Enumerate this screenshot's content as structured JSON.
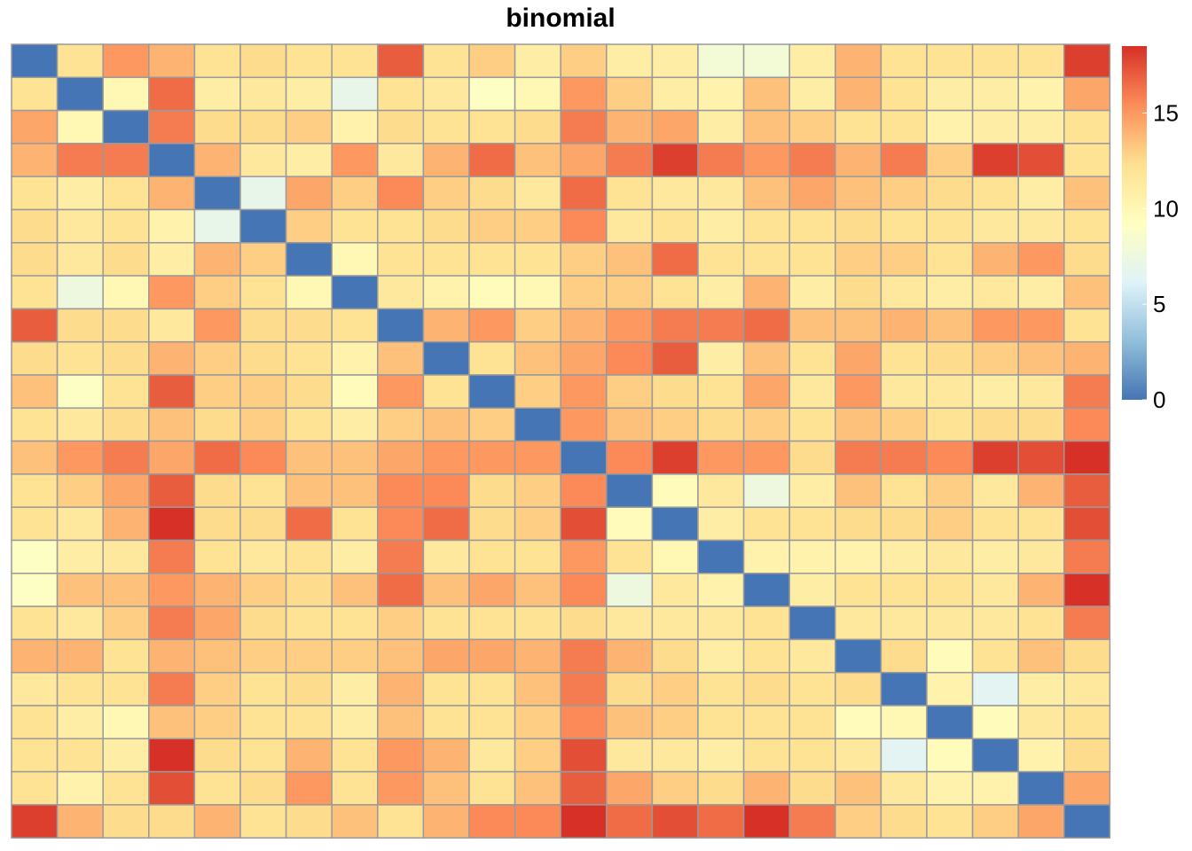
{
  "chart_data": {
    "type": "heatmap",
    "title": "binomial",
    "xlabel": "",
    "ylabel": "",
    "n": 24,
    "grid": true,
    "legend": "right",
    "colorbar": {
      "range": [
        0,
        18.5
      ],
      "ticks": [
        0,
        5,
        10,
        15
      ],
      "tick_labels": [
        "0",
        "5",
        "10",
        "15"
      ],
      "palette": [
        "#4575B4",
        "#91BFDB",
        "#E0F3F8",
        "#FFFFBF",
        "#FEE090",
        "#FC8D59",
        "#D73027"
      ]
    },
    "values": [
      [
        0,
        12,
        15,
        14,
        12,
        12.5,
        12,
        12,
        17,
        12,
        13,
        11,
        13,
        11,
        11,
        8,
        8,
        11,
        14,
        12,
        12,
        12,
        12,
        18
      ],
      [
        12,
        0,
        10,
        16.5,
        11,
        11.5,
        11,
        7,
        12,
        11.5,
        9,
        10,
        15,
        13,
        11,
        10.5,
        13.5,
        11,
        14,
        12,
        11,
        11,
        10.5,
        14.5
      ],
      [
        14.5,
        10,
        0,
        16,
        12.5,
        12.5,
        13,
        10.5,
        12.5,
        12,
        12,
        12.5,
        16,
        14,
        14.5,
        11,
        13.5,
        13,
        12,
        12,
        10.5,
        11,
        11,
        12
      ],
      [
        14,
        16,
        16,
        0,
        14,
        11.5,
        11,
        15,
        11.5,
        14,
        16.5,
        13.5,
        14.5,
        16,
        18,
        16,
        15,
        16,
        14,
        16,
        13,
        18,
        17.5,
        12
      ],
      [
        12,
        11,
        12,
        14,
        0,
        7,
        14.5,
        13,
        15.5,
        13,
        12.5,
        11.5,
        16.5,
        12,
        11.5,
        11.5,
        13.5,
        14.5,
        13.5,
        13,
        12.5,
        12,
        11,
        13.5
      ],
      [
        12.5,
        11.5,
        12,
        10.5,
        7,
        0,
        13,
        12,
        12,
        12.5,
        13,
        13,
        15.5,
        11.5,
        12,
        11,
        12,
        12,
        12.5,
        12,
        12,
        11.5,
        11.5,
        12
      ],
      [
        12.5,
        11.5,
        12.5,
        11,
        14,
        13,
        0,
        10,
        12,
        12,
        12,
        12,
        13,
        13.5,
        16.5,
        12,
        12,
        12,
        13,
        13,
        12,
        14,
        15,
        12.5
      ],
      [
        12,
        7.5,
        10,
        15,
        13,
        12,
        10,
        0,
        11.5,
        10.5,
        9.5,
        10,
        13,
        13,
        12,
        11,
        14,
        11,
        12.5,
        11.5,
        11,
        11.5,
        11,
        13.5
      ],
      [
        17,
        12.5,
        12.5,
        11.5,
        15,
        12.5,
        12.5,
        12,
        0,
        14,
        15,
        13,
        14,
        15,
        16,
        16,
        16.5,
        13.5,
        13.5,
        14,
        13.5,
        15,
        15,
        12
      ],
      [
        12.5,
        12,
        12.5,
        14,
        13,
        12.5,
        12,
        10.5,
        13.5,
        0,
        12,
        13.5,
        14.5,
        15.5,
        17,
        11,
        13.5,
        12,
        14.5,
        12,
        12.5,
        13,
        13.5,
        14
      ],
      [
        13.5,
        9,
        12,
        17,
        13,
        13,
        12.5,
        9.5,
        15,
        12,
        0,
        13,
        15,
        13,
        12.5,
        12,
        14.5,
        11.5,
        15,
        11.5,
        11.5,
        11,
        11.5,
        16
      ],
      [
        12,
        11.5,
        12.5,
        13.5,
        12.5,
        13,
        12,
        11,
        13,
        13.5,
        13,
        0,
        15,
        13.5,
        13,
        12.5,
        13,
        12,
        13.5,
        13,
        12,
        12.5,
        12.5,
        15.5
      ],
      [
        13.5,
        15,
        16,
        14.5,
        16.5,
        15.5,
        13.5,
        13.5,
        14.5,
        15,
        15,
        15,
        0,
        15.5,
        18,
        15,
        15,
        12.5,
        16,
        16,
        15.5,
        18,
        17.5,
        18.5
      ],
      [
        12,
        13,
        14.5,
        17,
        12.5,
        12,
        13.5,
        13.5,
        15.5,
        15.5,
        12.5,
        13,
        15.5,
        0,
        9.5,
        11.5,
        7.5,
        11,
        13.5,
        12,
        13,
        11.5,
        14,
        17
      ],
      [
        12,
        11.5,
        14,
        18.5,
        12.5,
        12.5,
        16.5,
        12,
        15.5,
        16.5,
        12.5,
        13,
        17.5,
        9.5,
        0,
        11,
        12,
        12,
        12.5,
        12.5,
        13,
        12,
        12,
        17.5
      ],
      [
        9,
        11,
        11.5,
        16,
        12,
        11.5,
        12,
        11,
        16,
        11.5,
        12,
        12,
        15,
        12,
        10,
        0,
        10.5,
        10.5,
        10.5,
        11,
        11.5,
        11,
        11.5,
        16
      ],
      [
        9,
        13.5,
        13.5,
        15,
        14,
        13,
        12.5,
        13.5,
        16.5,
        13.5,
        14.5,
        13.5,
        15.5,
        7.5,
        11.5,
        10.5,
        0,
        11,
        12,
        12,
        12,
        11.5,
        14,
        18.5
      ],
      [
        12,
        11.5,
        13,
        16,
        14.5,
        12.5,
        12,
        12,
        13,
        12,
        12,
        12,
        12.5,
        11.5,
        11.5,
        11.5,
        12,
        0,
        11.5,
        11.5,
        11.5,
        11.5,
        12,
        16
      ],
      [
        14,
        14,
        12,
        14,
        13.5,
        13,
        13,
        13,
        13.5,
        14.5,
        14.5,
        14,
        16,
        14,
        12.5,
        11,
        12,
        11.5,
        0,
        12.5,
        9.5,
        12,
        13.5,
        12.5
      ],
      [
        11.5,
        12,
        12,
        16,
        13,
        12,
        12.5,
        11,
        14,
        12,
        12,
        13.5,
        16,
        12.5,
        13,
        12,
        12.5,
        12,
        12.5,
        0,
        10.5,
        6.5,
        11,
        11.5
      ],
      [
        12,
        11,
        10,
        13.5,
        13,
        12,
        12,
        11,
        13.5,
        12,
        12,
        13,
        15.5,
        13.5,
        13,
        12,
        12,
        12,
        9.5,
        10,
        0,
        9.5,
        11.5,
        12
      ],
      [
        12,
        12,
        11,
        18.5,
        12.5,
        12,
        14,
        12,
        15,
        14,
        11.5,
        13,
        17.5,
        11.5,
        11.5,
        11,
        12,
        12,
        11.5,
        6.5,
        9.5,
        0,
        10.5,
        12.5
      ],
      [
        12,
        10.5,
        12,
        17.5,
        12,
        12.5,
        15,
        12,
        15,
        13.5,
        12,
        13.5,
        17,
        14.5,
        13,
        12.5,
        14,
        12.5,
        13.5,
        11.5,
        10.5,
        10.5,
        0,
        14.5
      ],
      [
        18,
        14,
        12.5,
        12.5,
        14,
        12,
        12.5,
        13.5,
        12,
        14,
        15.5,
        15.5,
        18.5,
        16.5,
        17.5,
        16.5,
        18.5,
        16,
        13,
        12.5,
        12,
        13,
        14.5,
        0
      ]
    ]
  }
}
